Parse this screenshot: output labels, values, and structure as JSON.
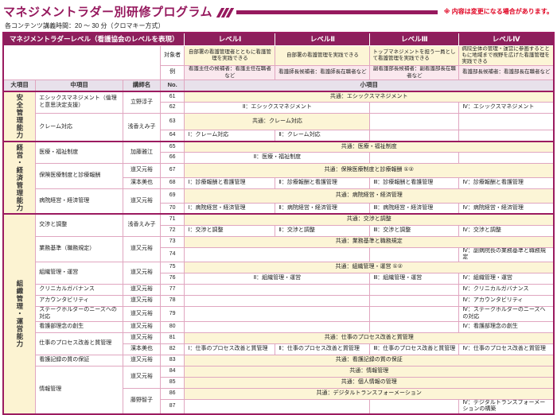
{
  "title": "マネジメントラダー別研修プログラム",
  "note": "※ 内容は変更になる場合があります。",
  "subtitle": "各コンテンツ講義時間：20 ～ 30 分（クロマキー方式）",
  "header": {
    "ladder_label": "マネジメントラダーレベル（看護協会のレベルを表現）",
    "target_label": "対象者",
    "example_label": "例",
    "columns": {
      "major": "大項目",
      "middle": "中項目",
      "lecturer": "講師名",
      "no": "No.",
      "small": "小項目"
    },
    "levels": [
      {
        "name": "レベルⅠ",
        "target": "自部署の看護管理者とともに看護管理を実践できる",
        "example": "看護主任の候補者：看護主任在職者など"
      },
      {
        "name": "レベルⅡ",
        "target": "自部署の看護管理を実践できる",
        "example": "看護師長候補者：看護師長在職者など"
      },
      {
        "name": "レベルⅢ",
        "target": "トップマネジメントを担う一員として看護管理を実践できる",
        "example": "副看護部長候補者：副看護部長在職者など"
      },
      {
        "name": "レベルⅣ",
        "target": "病院全体の管理・運営に参画するとともに地域まで視野を広げた看護管理を実践できる",
        "example": "看護部長候補者：看護部長在職者など"
      }
    ]
  },
  "colors": {
    "accent": "#96195e",
    "thin_border": "#e0a6c0",
    "common_yellow": "#fcf5d6",
    "example_pink": "#fae8ee",
    "note_red": "#e00020"
  },
  "table": {
    "majors": [
      {
        "label": "安全管理能力",
        "span": 4
      },
      {
        "label": "経営・経済管理能力",
        "span": 6
      },
      {
        "label": "組織管理・運営能力",
        "span": 17
      }
    ],
    "middles": [
      {
        "label": "エシックスマネジメント（倫理と意思決定支援）",
        "span": 2
      },
      {
        "label": "クレーム対応",
        "span": 2
      },
      {
        "label": "医療・福祉制度",
        "span": 2
      },
      {
        "label": "保険医療制度と診療報酬",
        "span": 2
      },
      {
        "label": "病院経営・経済管理",
        "span": 2
      },
      {
        "label": "交渉と調整",
        "span": 2
      },
      {
        "label": "業務基準（職務規定）",
        "span": 2
      },
      {
        "label": "組織管理・運営",
        "span": 2
      },
      {
        "label": "クリニカルガバナンス",
        "span": 1
      },
      {
        "label": "アカウンタビリティ",
        "span": 1
      },
      {
        "label": "ステークホルダーのニーズへの対応",
        "span": 1
      },
      {
        "label": "看護部理念の創生",
        "span": 1
      },
      {
        "label": "仕事のプロセス改善と質管理",
        "span": 2
      },
      {
        "label": "看護記録の質の保証",
        "span": 1
      },
      {
        "label": "情報管理",
        "span": 4
      }
    ],
    "lecturers": [
      {
        "name": "立野淳子",
        "span": 2
      },
      {
        "name": "浅香えみ子",
        "span": 2
      },
      {
        "name": "加藤雅江",
        "span": 2
      },
      {
        "name": "道又元裕",
        "span": 1
      },
      {
        "name": "濱本美也",
        "span": 1
      },
      {
        "name": "道又元裕",
        "span": 2
      },
      {
        "name": "浅香えみ子",
        "span": 2
      },
      {
        "name": "道又元裕",
        "span": 2
      },
      {
        "name": "道又元裕",
        "span": 2
      },
      {
        "name": "道又元裕",
        "span": 1
      },
      {
        "name": "道又元裕",
        "span": 1
      },
      {
        "name": "道又元裕",
        "span": 1
      },
      {
        "name": "道又元裕",
        "span": 1
      },
      {
        "name": "道又元裕",
        "span": 1
      },
      {
        "name": "濱本美也",
        "span": 1
      },
      {
        "name": "道又元裕",
        "span": 1
      },
      {
        "name": "道又元裕",
        "span": 2
      },
      {
        "name": "藤野智子",
        "span": 2
      }
    ],
    "rows": [
      {
        "no": "61",
        "cells": [
          {
            "span": 4,
            "style": "common",
            "text": "共通：エシックスマネジメント"
          }
        ]
      },
      {
        "no": "62",
        "cells": [
          {
            "span": 2,
            "style": "center",
            "text": "Ⅱ：エシックスマネジメント"
          },
          {
            "span": 1,
            "style": "empty",
            "text": ""
          },
          {
            "span": 1,
            "style": "left",
            "text": "Ⅳ：エシックスマネジメント"
          }
        ]
      },
      {
        "no": "63",
        "cells": [
          {
            "span": 2,
            "style": "common",
            "text": "共通：クレーム対応"
          },
          {
            "span": 1,
            "style": "empty",
            "text": ""
          },
          {
            "span": 1,
            "style": "empty",
            "text": ""
          }
        ]
      },
      {
        "no": "64",
        "cells": [
          {
            "span": 1,
            "style": "left",
            "text": "Ⅰ：クレーム対応"
          },
          {
            "span": 1,
            "style": "left",
            "text": "Ⅱ：クレーム対応"
          },
          {
            "span": 1,
            "style": "empty",
            "text": ""
          },
          {
            "span": 1,
            "style": "empty",
            "text": ""
          }
        ]
      },
      {
        "no": "65",
        "cells": [
          {
            "span": 4,
            "style": "common",
            "text": "共通：医療・福祉制度"
          }
        ]
      },
      {
        "no": "66",
        "cells": [
          {
            "span": 2,
            "style": "center",
            "text": "Ⅱ：医療・福祉制度"
          },
          {
            "span": 1,
            "style": "empty",
            "text": ""
          },
          {
            "span": 1,
            "style": "empty",
            "text": ""
          }
        ]
      },
      {
        "no": "67",
        "cells": [
          {
            "span": 4,
            "style": "common",
            "text": "共通：保険医療制度と診療報酬 ①②"
          }
        ]
      },
      {
        "no": "68",
        "cells": [
          {
            "span": 1,
            "style": "left",
            "text": "Ⅰ：診療報酬と看護管理"
          },
          {
            "span": 1,
            "style": "left",
            "text": "Ⅱ：診療報酬と看護管理"
          },
          {
            "span": 1,
            "style": "left",
            "text": "Ⅲ：診療報酬と看護管理"
          },
          {
            "span": 1,
            "style": "left",
            "text": "Ⅳ：診療報酬と看護管理"
          }
        ]
      },
      {
        "no": "69",
        "cells": [
          {
            "span": 4,
            "style": "common",
            "text": "共通：病院経営・経済管理"
          }
        ]
      },
      {
        "no": "70",
        "cells": [
          {
            "span": 1,
            "style": "left",
            "text": "Ⅰ：病院経営・経済管理"
          },
          {
            "span": 1,
            "style": "left",
            "text": "Ⅱ：病院経営・経済管理"
          },
          {
            "span": 1,
            "style": "left",
            "text": "Ⅲ：病院経営・経済管理"
          },
          {
            "span": 1,
            "style": "left",
            "text": "Ⅳ：病院経営・経済管理"
          }
        ]
      },
      {
        "no": "71",
        "cells": [
          {
            "span": 4,
            "style": "common",
            "text": "共通：交渉と調整"
          }
        ]
      },
      {
        "no": "72",
        "cells": [
          {
            "span": 1,
            "style": "left",
            "text": "Ⅰ：交渉と調整"
          },
          {
            "span": 1,
            "style": "left",
            "text": "Ⅱ：交渉と調整"
          },
          {
            "span": 1,
            "style": "left",
            "text": "Ⅲ：交渉と調整"
          },
          {
            "span": 1,
            "style": "left",
            "text": "Ⅳ：交渉と調整"
          }
        ]
      },
      {
        "no": "73",
        "cells": [
          {
            "span": 4,
            "style": "common",
            "text": "共通：業務基準と職務規定"
          }
        ]
      },
      {
        "no": "74",
        "cells": [
          {
            "span": 2,
            "style": "empty",
            "text": ""
          },
          {
            "span": 1,
            "style": "empty",
            "text": ""
          },
          {
            "span": 1,
            "style": "left",
            "text": "Ⅳ：副病院長の業務基準と職務規定"
          }
        ]
      },
      {
        "no": "75",
        "cells": [
          {
            "span": 4,
            "style": "common",
            "text": "共通：組織管理・運営 ①②"
          }
        ]
      },
      {
        "no": "76",
        "cells": [
          {
            "span": 2,
            "style": "center",
            "text": "Ⅱ：組織管理・運営"
          },
          {
            "span": 1,
            "style": "left",
            "text": "Ⅲ：組織管理・運営"
          },
          {
            "span": 1,
            "style": "left",
            "text": "Ⅳ：組織管理・運営"
          }
        ]
      },
      {
        "no": "77",
        "cells": [
          {
            "span": 2,
            "style": "empty",
            "text": ""
          },
          {
            "span": 1,
            "style": "empty",
            "text": ""
          },
          {
            "span": 1,
            "style": "left",
            "text": "Ⅳ：クリニカルガバナンス"
          }
        ]
      },
      {
        "no": "78",
        "cells": [
          {
            "span": 2,
            "style": "empty",
            "text": ""
          },
          {
            "span": 1,
            "style": "empty",
            "text": ""
          },
          {
            "span": 1,
            "style": "left",
            "text": "Ⅳ：アカウンタビリティ"
          }
        ]
      },
      {
        "no": "79",
        "cells": [
          {
            "span": 2,
            "style": "empty",
            "text": ""
          },
          {
            "span": 1,
            "style": "empty",
            "text": ""
          },
          {
            "span": 1,
            "style": "left",
            "text": "Ⅳ：ステークホルダーのニーズへの対応"
          }
        ]
      },
      {
        "no": "80",
        "cells": [
          {
            "span": 2,
            "style": "empty",
            "text": ""
          },
          {
            "span": 1,
            "style": "empty",
            "text": ""
          },
          {
            "span": 1,
            "style": "left",
            "text": "Ⅳ：看護部理念の創生"
          }
        ]
      },
      {
        "no": "81",
        "cells": [
          {
            "span": 4,
            "style": "common",
            "text": "共通：仕事のプロセス改善と質管理"
          }
        ]
      },
      {
        "no": "82",
        "cells": [
          {
            "span": 1,
            "style": "left",
            "text": "Ⅰ：仕事のプロセス改善と質管理"
          },
          {
            "span": 1,
            "style": "left",
            "text": "Ⅱ：仕事のプロセス改善と質管理"
          },
          {
            "span": 1,
            "style": "left",
            "text": "Ⅲ：仕事のプロセス改善と質管理"
          },
          {
            "span": 1,
            "style": "left",
            "text": "Ⅳ：仕事のプロセス改善と質管理"
          }
        ]
      },
      {
        "no": "83",
        "cells": [
          {
            "span": 4,
            "style": "common",
            "text": "共通：看護記録の質の保証"
          }
        ]
      },
      {
        "no": "84",
        "cells": [
          {
            "span": 4,
            "style": "common",
            "text": "共通：情報管理"
          }
        ]
      },
      {
        "no": "85",
        "cells": [
          {
            "span": 4,
            "style": "common",
            "text": "共通：個人情報の管理"
          }
        ]
      },
      {
        "no": "86",
        "cells": [
          {
            "span": 4,
            "style": "common",
            "text": "共通：デジタルトランスフォーメーション"
          }
        ]
      },
      {
        "no": "87",
        "cells": [
          {
            "span": 2,
            "style": "empty",
            "text": ""
          },
          {
            "span": 1,
            "style": "empty",
            "text": ""
          },
          {
            "span": 1,
            "style": "left",
            "text": "Ⅳ：デジタルトランスフォーメーションの構築"
          }
        ]
      }
    ]
  }
}
